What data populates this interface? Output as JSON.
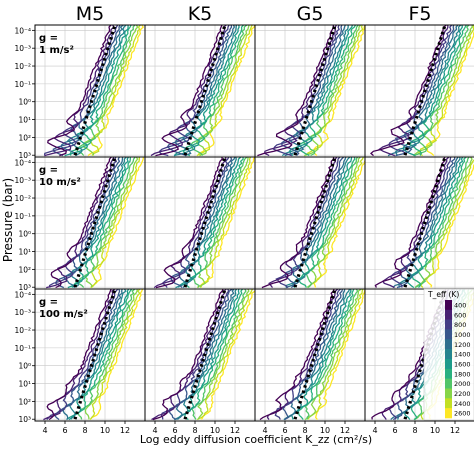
{
  "chart_data": {
    "type": "line",
    "columns": [
      "M5",
      "K5",
      "G5",
      "F5"
    ],
    "rows": [
      {
        "label": "g =",
        "value_label": "1 m/s²"
      },
      {
        "label": "g =",
        "value_label": "10 m/s²"
      },
      {
        "label": "g =",
        "value_label": "100 m/s²"
      }
    ],
    "xlabel": "Log eddy diffusion coefficient K_zz (cm²/s)",
    "ylabel": "Pressure (bar)",
    "xlim": [
      3,
      14
    ],
    "x_ticks": [
      "4",
      "6",
      "8",
      "10",
      "12"
    ],
    "ylim": [
      -4.3,
      3.1
    ],
    "y_scale": "log-reversed",
    "y_ticks": [
      "10⁻⁴",
      "10⁻³",
      "10⁻²",
      "10⁻¹",
      "10⁰",
      "10¹",
      "10²",
      "10³"
    ],
    "grid": true,
    "legend": {
      "title": "T_eff (K)",
      "placement": "right",
      "type": "colorbar"
    },
    "teff": [
      400,
      600,
      800,
      1000,
      1200,
      1400,
      1600,
      1800,
      2000,
      2200,
      2400,
      2600
    ],
    "colormap": [
      "#440154",
      "#482173",
      "#433e85",
      "#38588c",
      "#2d708e",
      "#25858e",
      "#1e9b8a",
      "#2ab07f",
      "#52c569",
      "#86d549",
      "#c2df23",
      "#fde725"
    ],
    "reference_line": {
      "style": "dotted",
      "color": "#000000",
      "x": [
        7.0,
        11.0
      ],
      "logP": [
        3.0,
        -4.3
      ]
    }
  }
}
